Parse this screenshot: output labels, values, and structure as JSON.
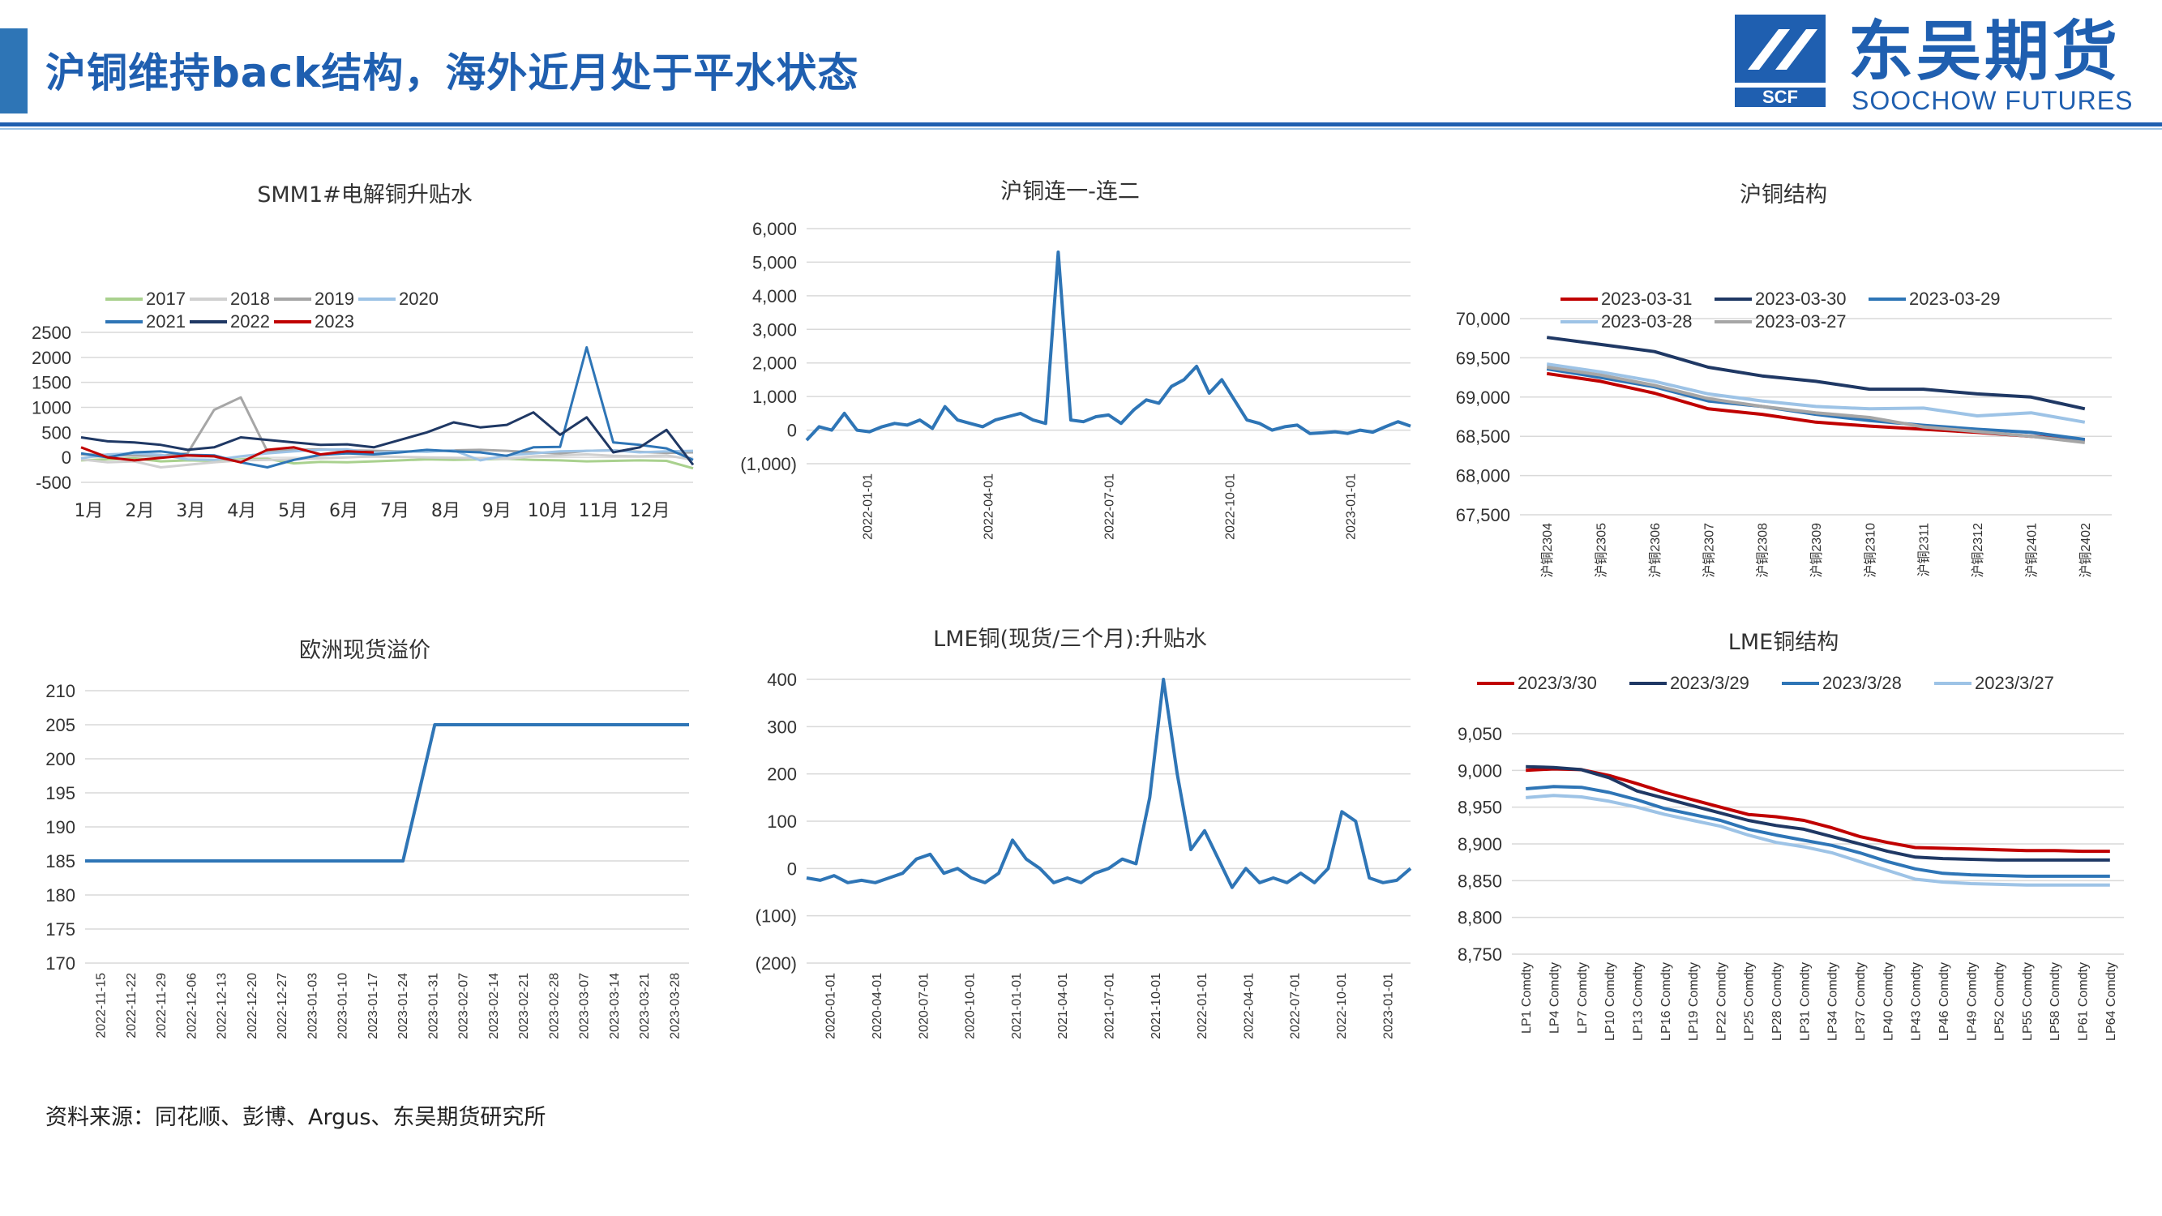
{
  "page": {
    "title": "沪铜维持back结构，海外近月处于平水状态",
    "source": "资料来源：同花顺、彭博、Argus、东吴期货研究所",
    "logo": {
      "cn": "东吴期货",
      "en": "SOOCHOW FUTURES",
      "mark": "SCF"
    },
    "colors": {
      "brand": "#1f5fb0",
      "red": "#c00000"
    }
  },
  "chart_data": [
    {
      "id": "c1",
      "type": "line",
      "title": "SMM1#电解铜升贴水",
      "x_labels": [
        "1月",
        "2月",
        "3月",
        "4月",
        "5月",
        "6月",
        "7月",
        "8月",
        "9月",
        "10月",
        "11月",
        "12月"
      ],
      "ylim": [
        -500,
        2500
      ],
      "yticks": [
        -500,
        0,
        500,
        1000,
        1500,
        2000,
        2500
      ],
      "legend_position": "top",
      "series": [
        {
          "name": "2017",
          "color": "#a9d18e",
          "values": [
            -60,
            -40,
            -20,
            -80,
            -60,
            -70,
            -40,
            -30,
            -120,
            -90,
            -100,
            -80,
            -60,
            -40,
            -50,
            -40,
            -30,
            -50,
            -60,
            -80,
            -70,
            -60,
            -70,
            -220
          ]
        },
        {
          "name": "2018",
          "color": "#d0d0d0",
          "values": [
            -40,
            -100,
            -80,
            -200,
            -150,
            -100,
            -60,
            -50,
            -40,
            -20,
            0,
            20,
            10,
            0,
            -10,
            -20,
            -30,
            20,
            40,
            60,
            30,
            20,
            40,
            -50
          ]
        },
        {
          "name": "2019",
          "color": "#a6a6a6",
          "values": [
            60,
            50,
            40,
            30,
            80,
            950,
            1200,
            120,
            150,
            160,
            140,
            130,
            120,
            120,
            140,
            150,
            130,
            100,
            80,
            130,
            140,
            110,
            90,
            100
          ]
        },
        {
          "name": "2020",
          "color": "#9dc3e6",
          "values": [
            -20,
            60,
            80,
            50,
            -40,
            -50,
            20,
            80,
            120,
            150,
            160,
            90,
            120,
            110,
            140,
            -60,
            40,
            80,
            120,
            130,
            140,
            100,
            120,
            130
          ]
        },
        {
          "name": "2021",
          "color": "#2e75b6",
          "values": [
            80,
            0,
            100,
            120,
            50,
            40,
            -100,
            -200,
            -50,
            50,
            80,
            60,
            100,
            150,
            120,
            100,
            30,
            200,
            210,
            2200,
            300,
            250,
            180,
            -50
          ]
        },
        {
          "name": "2022",
          "color": "#1f3864",
          "values": [
            400,
            320,
            300,
            250,
            150,
            200,
            400,
            350,
            300,
            250,
            260,
            200,
            350,
            500,
            700,
            600,
            650,
            900,
            450,
            800,
            100,
            200,
            550,
            -150
          ]
        },
        {
          "name": "2023",
          "color": "#c00000",
          "values": [
            200,
            0,
            -60,
            -10,
            40,
            20,
            -100,
            150,
            200,
            60,
            120,
            100
          ]
        }
      ]
    },
    {
      "id": "c2",
      "type": "line",
      "title": "沪铜连一-连二",
      "x_labels": [
        "2022-01-01",
        "2022-04-01",
        "2022-07-01",
        "2022-10-01",
        "2023-01-01"
      ],
      "ylim": [
        -1000,
        6000
      ],
      "yticks": [
        -1000,
        0,
        1000,
        2000,
        3000,
        4000,
        5000,
        6000
      ],
      "series": [
        {
          "name": "",
          "color": "#2e75b6",
          "values": [
            -300,
            100,
            0,
            500,
            0,
            -50,
            100,
            200,
            150,
            300,
            50,
            700,
            300,
            200,
            100,
            300,
            400,
            500,
            300,
            200,
            5300,
            300,
            250,
            400,
            450,
            200,
            600,
            900,
            800,
            1300,
            1500,
            1900,
            1100,
            1500,
            900,
            300,
            200,
            0,
            100,
            150,
            -100,
            -80,
            -50,
            -100,
            0,
            -60,
            100,
            250,
            120
          ]
        }
      ]
    },
    {
      "id": "c3",
      "type": "line",
      "title": "沪铜结构",
      "categories": [
        "沪铜2304",
        "沪铜2305",
        "沪铜2306",
        "沪铜2307",
        "沪铜2308",
        "沪铜2309",
        "沪铜2310",
        "沪铜2311",
        "沪铜2312",
        "沪铜2401",
        "沪铜2402"
      ],
      "ylim": [
        67500,
        70000
      ],
      "yticks": [
        67500,
        68000,
        68500,
        69000,
        69500,
        70000
      ],
      "legend_position": "top",
      "series": [
        {
          "name": "2023-03-31",
          "color": "#c00000",
          "values": [
            69300,
            69200,
            69050,
            68850,
            68780,
            68680,
            68630,
            68590,
            68550,
            68500,
            68450
          ]
        },
        {
          "name": "2023-03-30",
          "color": "#1f3864",
          "values": [
            69760,
            69670,
            69580,
            69380,
            69270,
            69200,
            69100,
            69100,
            69040,
            69000,
            68850
          ]
        },
        {
          "name": "2023-03-29",
          "color": "#2e75b6",
          "values": [
            69360,
            69250,
            69130,
            68950,
            68880,
            68780,
            68700,
            68640,
            68590,
            68550,
            68460
          ]
        },
        {
          "name": "2023-03-28",
          "color": "#9dc3e6",
          "values": [
            69420,
            69320,
            69200,
            69040,
            68950,
            68880,
            68850,
            68860,
            68760,
            68800,
            68680
          ]
        },
        {
          "name": "2023-03-27",
          "color": "#a6a6a6",
          "values": [
            69380,
            69280,
            69150,
            68980,
            68880,
            68800,
            68740,
            68620,
            68560,
            68500,
            68420
          ]
        }
      ]
    },
    {
      "id": "c4",
      "type": "line",
      "title": "欧洲现货溢价",
      "x_labels": [
        "2022-11-15",
        "2022-11-22",
        "2022-11-29",
        "2022-12-06",
        "2022-12-13",
        "2022-12-20",
        "2022-12-27",
        "2023-01-03",
        "2023-01-10",
        "2023-01-17",
        "2023-01-24",
        "2023-01-31",
        "2023-02-07",
        "2023-02-14",
        "2023-02-21",
        "2023-02-28",
        "2023-03-07",
        "2023-03-14",
        "2023-03-21",
        "2023-03-28"
      ],
      "ylim": [
        170,
        210
      ],
      "yticks": [
        170,
        175,
        180,
        185,
        190,
        195,
        200,
        205,
        210
      ],
      "series": [
        {
          "name": "",
          "color": "#2e75b6",
          "values": [
            185,
            185,
            185,
            185,
            185,
            185,
            185,
            185,
            185,
            185,
            185,
            205,
            205,
            205,
            205,
            205,
            205,
            205,
            205,
            205
          ]
        }
      ]
    },
    {
      "id": "c5",
      "type": "line",
      "title": "LME铜(现货/三个月):升贴水",
      "x_labels": [
        "2020-01-01",
        "2020-04-01",
        "2020-07-01",
        "2020-10-01",
        "2021-01-01",
        "2021-04-01",
        "2021-07-01",
        "2021-10-01",
        "2022-01-01",
        "2022-04-01",
        "2022-07-01",
        "2022-10-01",
        "2023-01-01"
      ],
      "ylim": [
        -200,
        400
      ],
      "yticks": [
        -200,
        -100,
        0,
        100,
        200,
        300,
        400
      ],
      "series": [
        {
          "name": "",
          "color": "#2e75b6",
          "values": [
            -20,
            -25,
            -15,
            -30,
            -25,
            -30,
            -20,
            -10,
            20,
            30,
            -10,
            0,
            -20,
            -30,
            -10,
            60,
            20,
            0,
            -30,
            -20,
            -30,
            -10,
            0,
            20,
            10,
            150,
            420,
            200,
            40,
            80,
            20,
            -40,
            0,
            -30,
            -20,
            -30,
            -10,
            -30,
            0,
            120,
            100,
            -20,
            -30,
            -25,
            0
          ]
        }
      ]
    },
    {
      "id": "c6",
      "type": "line",
      "title": "LME铜结构",
      "categories": [
        "LP1 Comdty",
        "LP4 Comdty",
        "LP7 Comdty",
        "LP10 Comdty",
        "LP13 Comdty",
        "LP16 Comdty",
        "LP19 Comdty",
        "LP22 Comdty",
        "LP25 Comdty",
        "LP28 Comdty",
        "LP31 Comdty",
        "LP34 Comdty",
        "LP37 Comdty",
        "LP40 Comdty",
        "LP43 Comdty",
        "LP46 Comdty",
        "LP49 Comdty",
        "LP52 Comdty",
        "LP55 Comdty",
        "LP58 Comdty",
        "LP61 Comdty",
        "LP64 Comdty"
      ],
      "ylim": [
        8750,
        9050
      ],
      "yticks": [
        8750,
        8800,
        8850,
        8900,
        8950,
        9000,
        9050
      ],
      "legend_position": "top",
      "series": [
        {
          "name": "2023/3/30",
          "color": "#c00000",
          "values": [
            9000,
            9002,
            9001,
            8993,
            8982,
            8970,
            8960,
            8950,
            8940,
            8937,
            8932,
            8922,
            8910,
            8902,
            8895,
            8894,
            8893,
            8892,
            8891,
            8891,
            8890,
            8890
          ]
        },
        {
          "name": "2023/3/29",
          "color": "#1f3864",
          "values": [
            9005,
            9004,
            9001,
            8990,
            8972,
            8962,
            8952,
            8942,
            8932,
            8925,
            8920,
            8910,
            8900,
            8890,
            8882,
            8880,
            8879,
            8878,
            8878,
            8878,
            8878,
            8878
          ]
        },
        {
          "name": "2023/3/28",
          "color": "#2e75b6",
          "values": [
            8975,
            8978,
            8977,
            8970,
            8960,
            8948,
            8940,
            8932,
            8920,
            8912,
            8905,
            8898,
            8888,
            8876,
            8866,
            8860,
            8858,
            8857,
            8856,
            8856,
            8856,
            8856
          ]
        },
        {
          "name": "2023/3/27",
          "color": "#9dc3e6",
          "values": [
            8963,
            8966,
            8964,
            8958,
            8950,
            8940,
            8932,
            8924,
            8912,
            8902,
            8896,
            8888,
            8876,
            8864,
            8852,
            8848,
            8846,
            8845,
            8844,
            8844,
            8844,
            8844
          ]
        }
      ]
    }
  ]
}
